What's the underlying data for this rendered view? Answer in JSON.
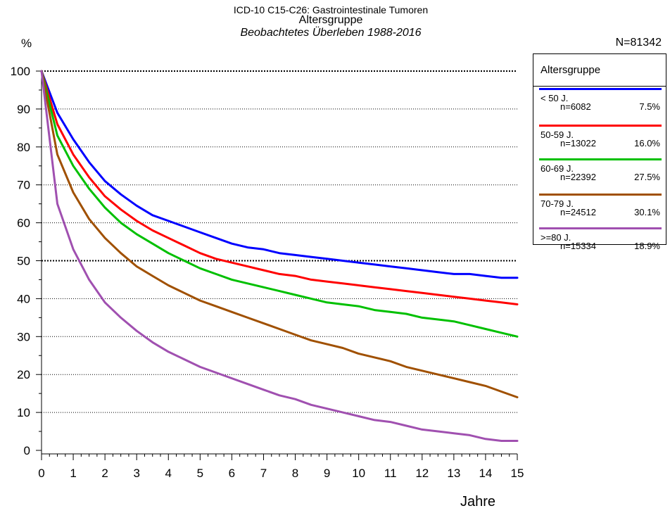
{
  "header": {
    "title_line1": "ICD-10 C15-C26: Gastrointestinale Tumoren",
    "title_line2": "Altersgruppe",
    "title_line3": "Beobachtetes Überleben 1988-2016",
    "ylabel": "%",
    "total_n": "N=81342",
    "xlabel": "Jahre"
  },
  "legend": {
    "title": "Altersgruppe",
    "items": [
      {
        "label": "< 50 J.",
        "n": "n=6082",
        "pct": "7.5%",
        "color": "#0000ff"
      },
      {
        "label": "50-59 J.",
        "n": "n=13022",
        "pct": "16.0%",
        "color": "#ff0000"
      },
      {
        "label": "60-69 J.",
        "n": "n=22392",
        "pct": "27.5%",
        "color": "#00c000"
      },
      {
        "label": "70-79 J.",
        "n": "n=24512",
        "pct": "30.1%",
        "color": "#a05000"
      },
      {
        "label": ">=80 J.",
        "n": "n=15334",
        "pct": "18.9%",
        "color": "#a050b0"
      }
    ]
  },
  "chart_data": {
    "type": "line",
    "title": "ICD-10 C15-C26: Gastrointestinale Tumoren",
    "subtitle": "Altersgruppe — Beobachtetes Überleben 1988-2016",
    "xlabel": "Jahre",
    "ylabel": "%",
    "xlim": [
      0,
      15
    ],
    "ylim": [
      0,
      100
    ],
    "xticks": [
      0,
      1,
      2,
      3,
      4,
      5,
      6,
      7,
      8,
      9,
      10,
      11,
      12,
      13,
      14,
      15
    ],
    "yticks": [
      0,
      10,
      20,
      30,
      40,
      50,
      60,
      70,
      80,
      90,
      100
    ],
    "grid": "horizontal dotted at 10..100, bold at 50 and 100",
    "legend": "right",
    "x": [
      0,
      0.5,
      1,
      1.5,
      2,
      2.5,
      3,
      3.5,
      4,
      4.5,
      5,
      5.5,
      6,
      6.5,
      7,
      7.5,
      8,
      8.5,
      9,
      9.5,
      10,
      10.5,
      11,
      11.5,
      12,
      12.5,
      13,
      13.5,
      14,
      14.5,
      15
    ],
    "series": [
      {
        "name": "< 50 J.",
        "color": "#0000ff",
        "values": [
          100,
          89,
          82,
          76,
          71,
          67.5,
          64.5,
          62,
          60.5,
          59,
          57.5,
          56,
          54.5,
          53.5,
          53,
          52,
          51.5,
          51,
          50.5,
          50,
          49.5,
          49,
          48.5,
          48,
          47.5,
          47,
          46.5,
          46.5,
          46,
          45.5,
          45.5
        ]
      },
      {
        "name": "50-59 J.",
        "color": "#ff0000",
        "values": [
          100,
          86,
          78,
          72,
          67,
          63.5,
          60.5,
          58,
          56,
          54,
          52,
          50.5,
          49.5,
          48.5,
          47.5,
          46.5,
          46,
          45,
          44.5,
          44,
          43.5,
          43,
          42.5,
          42,
          41.5,
          41,
          40.5,
          40,
          39.5,
          39,
          38.5
        ]
      },
      {
        "name": "60-69 J.",
        "color": "#00c000",
        "values": [
          100,
          83,
          75,
          69,
          64,
          60,
          57,
          54.5,
          52,
          50,
          48,
          46.5,
          45,
          44,
          43,
          42,
          41,
          40,
          39,
          38.5,
          38,
          37,
          36.5,
          36,
          35,
          34.5,
          34,
          33,
          32,
          31,
          30
        ]
      },
      {
        "name": "70-79 J.",
        "color": "#a05000",
        "values": [
          100,
          78,
          68,
          61,
          56,
          52,
          48.5,
          46,
          43.5,
          41.5,
          39.5,
          38,
          36.5,
          35,
          33.5,
          32,
          30.5,
          29,
          28,
          27,
          25.5,
          24.5,
          23.5,
          22,
          21,
          20,
          19,
          18,
          17,
          15.5,
          14
        ]
      },
      {
        "name": ">=80 J.",
        "color": "#a050b0",
        "values": [
          100,
          65,
          53,
          45,
          39,
          35,
          31.5,
          28.5,
          26,
          24,
          22,
          20.5,
          19,
          17.5,
          16,
          14.5,
          13.5,
          12,
          11,
          10,
          9,
          8,
          7.5,
          6.5,
          5.5,
          5,
          4.5,
          4,
          3,
          2.5,
          2.5
        ]
      }
    ]
  }
}
